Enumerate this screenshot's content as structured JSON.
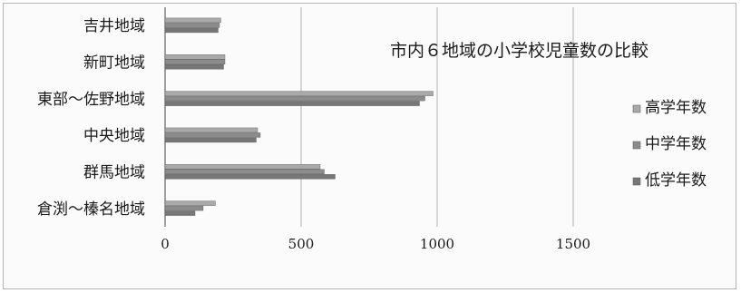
{
  "chart_data": {
    "type": "bar",
    "orientation": "horizontal",
    "title": "市内６地域の小学校児童数の比較",
    "categories": [
      "吉井地域",
      "新町地域",
      "東部～佐野地域",
      "中央地域",
      "群馬地域",
      "倉渕～榛名地域"
    ],
    "series": [
      {
        "name": "高学年数",
        "color": "#a9a9a9",
        "values": [
          205,
          220,
          985,
          340,
          570,
          185
        ]
      },
      {
        "name": "中学年数",
        "color": "#8c8c8c",
        "values": [
          200,
          220,
          955,
          350,
          585,
          140
        ]
      },
      {
        "name": "低学年数",
        "color": "#777777",
        "values": [
          195,
          215,
          935,
          335,
          625,
          110
        ]
      }
    ],
    "xticks": [
      "0",
      "500",
      "1000",
      "1500"
    ],
    "xlim": [
      0,
      1500
    ],
    "grid": true,
    "legend_position": "right"
  }
}
